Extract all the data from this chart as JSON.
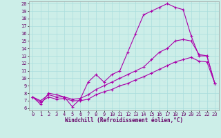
{
  "xlabel": "Windchill (Refroidissement éolien,°C)",
  "bg_color": "#cceee8",
  "line_color": "#aa00aa",
  "xlim": [
    -0.5,
    23.5
  ],
  "ylim": [
    5.7,
    20.3
  ],
  "xticks": [
    0,
    1,
    2,
    3,
    4,
    5,
    6,
    7,
    8,
    9,
    10,
    11,
    12,
    13,
    14,
    15,
    16,
    17,
    18,
    19,
    20,
    21,
    22,
    23
  ],
  "yticks": [
    6,
    7,
    8,
    9,
    10,
    11,
    12,
    13,
    14,
    15,
    16,
    17,
    18,
    19,
    20
  ],
  "line1_x": [
    0,
    1,
    2,
    3,
    4,
    5,
    6,
    7,
    8,
    9,
    10,
    11,
    12,
    13,
    14,
    15,
    16,
    17,
    18,
    19,
    20,
    21,
    22,
    23
  ],
  "line1_y": [
    7.5,
    6.5,
    8.0,
    7.8,
    7.5,
    6.2,
    7.2,
    9.5,
    10.5,
    9.5,
    10.5,
    11.0,
    13.5,
    16.0,
    18.5,
    19.0,
    19.5,
    20.0,
    19.5,
    19.2,
    15.7,
    13.0,
    13.0,
    9.3
  ],
  "line2_x": [
    0,
    1,
    2,
    3,
    4,
    5,
    6,
    7,
    8,
    9,
    10,
    11,
    12,
    13,
    14,
    15,
    16,
    17,
    18,
    19,
    20,
    21,
    22,
    23
  ],
  "line2_y": [
    7.5,
    7.0,
    7.8,
    7.5,
    7.5,
    7.2,
    7.3,
    7.8,
    8.5,
    9.0,
    9.5,
    10.0,
    10.5,
    11.0,
    11.5,
    12.5,
    13.5,
    14.0,
    15.0,
    15.2,
    15.0,
    13.2,
    13.0,
    9.3
  ],
  "line3_x": [
    0,
    1,
    2,
    3,
    4,
    5,
    6,
    7,
    8,
    9,
    10,
    11,
    12,
    13,
    14,
    15,
    16,
    17,
    18,
    19,
    20,
    21,
    22,
    23
  ],
  "line3_y": [
    7.5,
    6.8,
    7.5,
    7.2,
    7.3,
    7.0,
    7.0,
    7.2,
    7.8,
    8.2,
    8.5,
    9.0,
    9.3,
    9.8,
    10.2,
    10.7,
    11.2,
    11.7,
    12.2,
    12.5,
    12.8,
    12.3,
    12.2,
    9.3
  ],
  "grid_color": "#aadddd",
  "marker": "+",
  "tick_fontsize": 5.0,
  "xlabel_fontsize": 5.5,
  "marker_size": 3.0,
  "line_width": 0.8
}
